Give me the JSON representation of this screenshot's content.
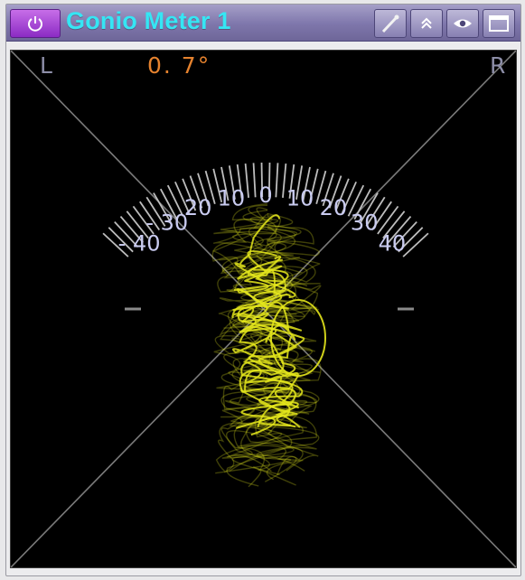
{
  "window": {
    "title": "Gonio Meter 1",
    "accent_title_color": "#35e6f4",
    "power_button_color": "#a84bd6",
    "toolbar_icons": [
      "wrench-icon",
      "double-chevron-up-icon",
      "eye-icon",
      "window-icon"
    ]
  },
  "meter": {
    "left_label": "L",
    "right_label": "R",
    "phase_readout": "0. 7°",
    "trace_color": "#e4e61c",
    "scale_labels": [
      "- 40",
      "- 30",
      "20",
      "10",
      "0",
      "10",
      "20",
      "30",
      "40"
    ],
    "scale_values": [
      -40,
      -30,
      -20,
      -10,
      0,
      10,
      20,
      30,
      40
    ],
    "scale_range": [
      -45,
      45
    ]
  }
}
